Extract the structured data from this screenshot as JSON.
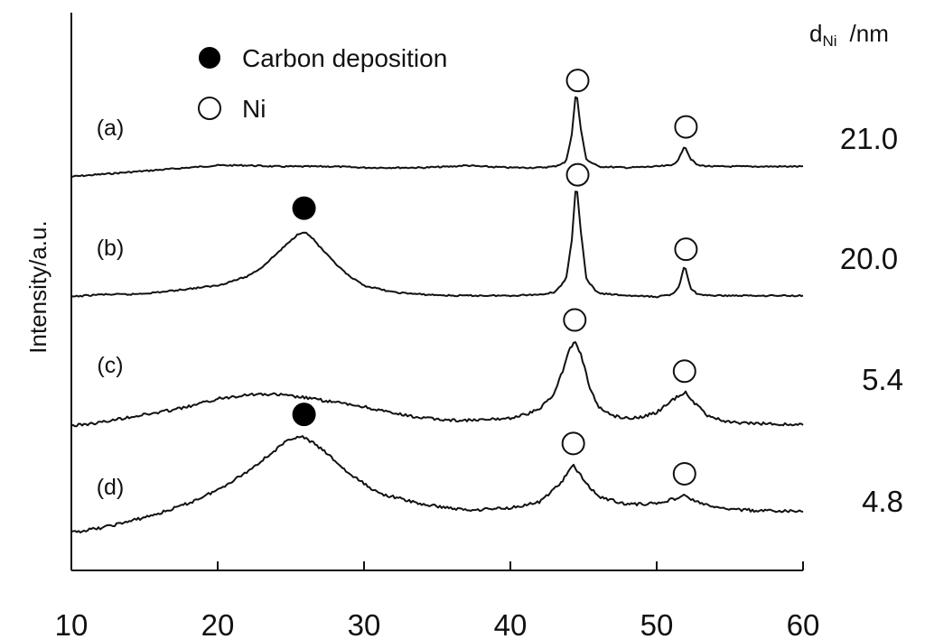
{
  "chart_data": {
    "type": "line",
    "title": "",
    "xlabel": "",
    "ylabel": "Intensity/a.u.",
    "xlim": [
      10,
      60
    ],
    "ylim": [
      0,
      4.1
    ],
    "x_ticks": [
      10,
      20,
      30,
      40,
      50,
      60
    ],
    "y_ticks": [],
    "grid": false,
    "legend": {
      "placement": "top-left",
      "entries": [
        {
          "marker": "filled-circle",
          "label": "Carbon deposition"
        },
        {
          "marker": "open-circle",
          "label": "Ni"
        }
      ]
    },
    "size_header": {
      "d": "d",
      "sub": "Ni",
      "unit": "/nm"
    },
    "series": [
      {
        "label": "(a)",
        "size_value": "21.0",
        "x": [
          10,
          12,
          14,
          16,
          18,
          20,
          22,
          24,
          26,
          28,
          30,
          32,
          34,
          36,
          37,
          38,
          40,
          42,
          43,
          43.8,
          44.2,
          44.5,
          44.8,
          45.2,
          46,
          48,
          50,
          51,
          51.5,
          51.9,
          52.3,
          52.8,
          54,
          56,
          58,
          60
        ],
        "y": [
          3.17,
          3.19,
          3.21,
          3.23,
          3.25,
          3.27,
          3.27,
          3.26,
          3.26,
          3.26,
          3.25,
          3.25,
          3.25,
          3.26,
          3.27,
          3.26,
          3.25,
          3.25,
          3.26,
          3.3,
          3.55,
          3.95,
          3.6,
          3.32,
          3.26,
          3.25,
          3.26,
          3.27,
          3.32,
          3.45,
          3.33,
          3.27,
          3.26,
          3.26,
          3.26,
          3.26
        ],
        "markers": [
          {
            "type": "Ni",
            "x": 44.6
          },
          {
            "type": "Ni",
            "x": 52.0
          }
        ]
      },
      {
        "label": "(b)",
        "size_value": "20.0",
        "x": [
          10,
          12,
          14,
          16,
          18,
          20,
          22,
          23,
          24,
          25,
          25.5,
          25.9,
          26.5,
          27,
          28,
          29,
          30,
          32,
          34,
          36,
          38,
          40,
          42,
          43,
          43.8,
          44.2,
          44.5,
          44.8,
          45.2,
          46,
          48,
          50,
          51,
          51.5,
          51.9,
          52.3,
          52.8,
          54,
          56,
          58,
          60
        ],
        "y": [
          2.1,
          2.12,
          2.12,
          2.14,
          2.17,
          2.2,
          2.28,
          2.36,
          2.48,
          2.6,
          2.66,
          2.68,
          2.62,
          2.54,
          2.4,
          2.28,
          2.2,
          2.14,
          2.12,
          2.11,
          2.11,
          2.11,
          2.12,
          2.14,
          2.25,
          2.6,
          3.14,
          2.7,
          2.25,
          2.13,
          2.11,
          2.1,
          2.12,
          2.18,
          2.38,
          2.18,
          2.12,
          2.11,
          2.11,
          2.11,
          2.11
        ],
        "markers": [
          {
            "type": "Carbon deposition",
            "x": 25.9
          },
          {
            "type": "Ni",
            "x": 44.6
          },
          {
            "type": "Ni",
            "x": 52.0
          }
        ]
      },
      {
        "label": "(c)",
        "size_value": "5.4",
        "x": [
          10,
          12,
          14,
          16,
          18,
          20,
          22,
          24,
          26,
          28,
          30,
          32,
          34,
          36,
          38,
          40,
          41,
          42,
          43,
          43.6,
          44.0,
          44.4,
          44.8,
          45.4,
          46,
          47,
          48,
          49,
          50,
          51,
          51.5,
          52,
          52.6,
          53.5,
          55,
          57,
          60
        ],
        "y": [
          0.95,
          0.98,
          1.03,
          1.07,
          1.12,
          1.19,
          1.23,
          1.23,
          1.2,
          1.16,
          1.12,
          1.06,
          1.02,
          1.0,
          1.0,
          1.02,
          1.05,
          1.1,
          1.24,
          1.45,
          1.62,
          1.7,
          1.6,
          1.3,
          1.12,
          1.04,
          1.02,
          1.03,
          1.07,
          1.17,
          1.22,
          1.25,
          1.15,
          1.04,
          0.98,
          0.97,
          0.96
        ],
        "markers": [
          {
            "type": "Ni",
            "x": 44.4
          },
          {
            "type": "Ni",
            "x": 51.9
          }
        ]
      },
      {
        "label": "(d)",
        "size_value": "4.8",
        "x": [
          10,
          12,
          14,
          16,
          18,
          20,
          22,
          24,
          25,
          25.8,
          26.5,
          27.5,
          29,
          31,
          34,
          37,
          40,
          42,
          43.5,
          44.3,
          45,
          46,
          48,
          50,
          51.2,
          51.9,
          52.6,
          54,
          56,
          58,
          60
        ],
        "y": [
          0.0,
          0.04,
          0.1,
          0.17,
          0.26,
          0.38,
          0.54,
          0.74,
          0.84,
          0.85,
          0.8,
          0.7,
          0.52,
          0.35,
          0.25,
          0.2,
          0.22,
          0.27,
          0.45,
          0.6,
          0.47,
          0.32,
          0.25,
          0.26,
          0.3,
          0.33,
          0.28,
          0.22,
          0.2,
          0.19,
          0.19
        ],
        "markers": [
          {
            "type": "Carbon deposition",
            "x": 25.9
          },
          {
            "type": "Ni",
            "x": 44.3
          },
          {
            "type": "Ni",
            "x": 51.9
          }
        ]
      }
    ]
  }
}
